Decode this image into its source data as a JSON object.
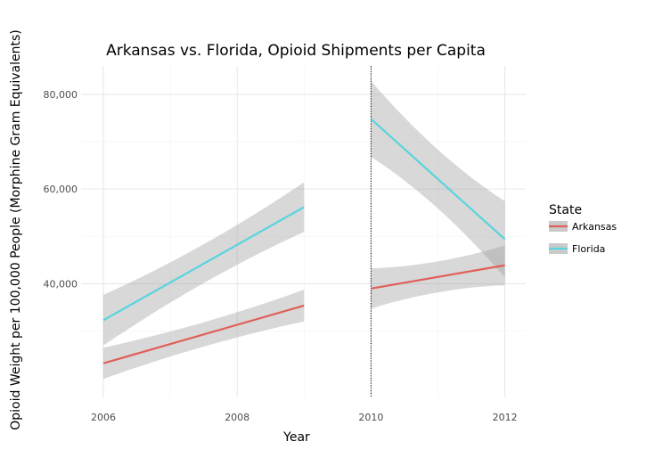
{
  "chart_data": {
    "type": "line",
    "title": "Arkansas vs. Florida, Opioid Shipments per Capita",
    "xlabel": "Year",
    "ylabel": "Opioid Weight per 100,000 People (Morphine Gram Equivalents)",
    "xlim": [
      2006,
      2012
    ],
    "ylim": [
      16000,
      86000
    ],
    "x_ticks": [
      2006,
      2008,
      2010,
      2012
    ],
    "x_tick_labels": [
      "2006",
      "2008",
      "2010",
      "2012"
    ],
    "y_ticks": [
      40000,
      60000,
      80000
    ],
    "y_tick_labels": [
      "40,000",
      "60,000",
      "80,000"
    ],
    "grid": true,
    "vertical_line": {
      "x": 2010,
      "style": "dotted"
    },
    "legend": {
      "title": "State",
      "position": "right",
      "entries": [
        "Arkansas",
        "Florida"
      ]
    },
    "series": [
      {
        "name": "Arkansas",
        "color": "#e0605a",
        "segments": [
          {
            "x": [
              2006,
              2009
            ],
            "y": [
              23200,
              35400
            ],
            "ci_lower": [
              19800,
              32200
            ],
            "ci_upper": [
              26400,
              38900
            ]
          },
          {
            "x": [
              2010,
              2012
            ],
            "y": [
              39000,
              43900
            ],
            "ci_lower": [
              34800,
              39700
            ],
            "ci_upper": [
              43300,
              48100
            ]
          }
        ]
      },
      {
        "name": "Florida",
        "color": "#5ad4de",
        "segments": [
          {
            "x": [
              2006,
              2009
            ],
            "y": [
              32300,
              56200
            ],
            "ci_lower": [
              26800,
              51000
            ],
            "ci_upper": [
              37500,
              61500
            ]
          },
          {
            "x": [
              2010,
              2012
            ],
            "y": [
              74800,
              49400
            ],
            "ci_lower": [
              66800,
              41400
            ],
            "ci_upper": [
              82800,
              57500
            ]
          }
        ]
      }
    ]
  }
}
